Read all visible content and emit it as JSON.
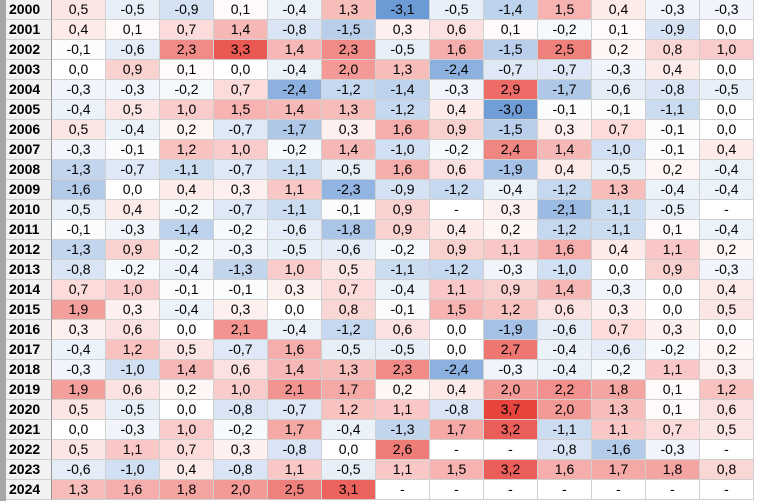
{
  "table": {
    "rows": [
      {
        "year": "2000",
        "cells": [
          "0,5",
          "-0,5",
          "-0,9",
          "0,1",
          "-0,4",
          "1,3",
          "-3,1",
          "-0,5",
          "-1,4",
          "1,5",
          "0,4",
          "-0,3",
          "-0,3"
        ]
      },
      {
        "year": "2001",
        "cells": [
          "0,4",
          "0,1",
          "0,7",
          "1,4",
          "-0,8",
          "-1,5",
          "0,3",
          "0,6",
          "0,1",
          "-0,2",
          "0,1",
          "-0,9",
          "0,0"
        ]
      },
      {
        "year": "2002",
        "cells": [
          "-0,1",
          "-0,6",
          "2,3",
          "3,3",
          "1,4",
          "2,3",
          "-0,5",
          "1,6",
          "-1,5",
          "2,5",
          "0,2",
          "0,8",
          "1,0"
        ]
      },
      {
        "year": "2003",
        "cells": [
          "0,0",
          "0,9",
          "0,1",
          "0,0",
          "-0,4",
          "2,0",
          "1,3",
          "-2,4",
          "-0,7",
          "-0,7",
          "-0,3",
          "0,4",
          "0,0"
        ]
      },
      {
        "year": "2004",
        "cells": [
          "-0,3",
          "-0,3",
          "-0,2",
          "0,7",
          "-2,4",
          "-1,2",
          "-1,4",
          "-0,3",
          "2,9",
          "-1,7",
          "-0,6",
          "-0,8",
          "-0,5"
        ]
      },
      {
        "year": "2005",
        "cells": [
          "-0,4",
          "0,5",
          "1,0",
          "1,5",
          "1,4",
          "1,3",
          "-1,2",
          "0,4",
          "-3,0",
          "-0,1",
          "-0,1",
          "-1,1",
          "0,0"
        ]
      },
      {
        "year": "2006",
        "cells": [
          "0,5",
          "-0,4",
          "0,2",
          "-0,7",
          "-1,7",
          "0,3",
          "1,6",
          "0,9",
          "-1,5",
          "0,3",
          "0,7",
          "-0,1",
          "0,0"
        ]
      },
      {
        "year": "2007",
        "cells": [
          "-0,3",
          "-0,1",
          "1,2",
          "1,0",
          "-0,2",
          "1,4",
          "-1,0",
          "-0,2",
          "2,4",
          "1,4",
          "-1,0",
          "-0,1",
          "0,4"
        ]
      },
      {
        "year": "2008",
        "cells": [
          "-1,3",
          "-0,7",
          "-1,1",
          "-0,7",
          "-1,1",
          "-0,5",
          "1,6",
          "0,6",
          "-1,9",
          "0,4",
          "-0,5",
          "0,2",
          "-0,4"
        ]
      },
      {
        "year": "2009",
        "cells": [
          "-1,6",
          "0,0",
          "0,4",
          "0,3",
          "1,1",
          "-2,3",
          "-0,9",
          "-1,2",
          "-0,4",
          "-1,2",
          "1,3",
          "-0,4",
          "-0,4"
        ]
      },
      {
        "year": "2010",
        "cells": [
          "-0,5",
          "0,4",
          "-0,2",
          "-0,7",
          "-1,1",
          "-0,1",
          "0,9",
          "-",
          "0,3",
          "-2,1",
          "-1,1",
          "-0,5",
          "-"
        ]
      },
      {
        "year": "2011",
        "cells": [
          "-0,1",
          "-0,3",
          "-1,4",
          "-0,2",
          "-0,6",
          "-1,8",
          "0,9",
          "0,4",
          "0,2",
          "-1,2",
          "-1,1",
          "0,1",
          "-0,4"
        ]
      },
      {
        "year": "2012",
        "cells": [
          "-1,3",
          "0,9",
          "-0,2",
          "-0,3",
          "-0,5",
          "-0,6",
          "-0,2",
          "0,9",
          "1,1",
          "1,6",
          "0,4",
          "1,1",
          "0,2"
        ]
      },
      {
        "year": "2013",
        "cells": [
          "-0,8",
          "-0,2",
          "-0,4",
          "-1,3",
          "1,0",
          "0,5",
          "-1,1",
          "-1,2",
          "-0,3",
          "-1,0",
          "0,0",
          "0,9",
          "-0,3"
        ]
      },
      {
        "year": "2014",
        "cells": [
          "0,7",
          "1,0",
          "-0,1",
          "-0,1",
          "0,3",
          "0,7",
          "-0,4",
          "1,1",
          "0,9",
          "1,4",
          "-0,3",
          "0,0",
          "0,4"
        ]
      },
      {
        "year": "2015",
        "cells": [
          "1,9",
          "0,3",
          "-0,4",
          "0,3",
          "0,0",
          "0,8",
          "-0,1",
          "1,5",
          "1,2",
          "0,6",
          "0,3",
          "0,0",
          "0,5"
        ]
      },
      {
        "year": "2016",
        "cells": [
          "0,3",
          "0,6",
          "0,0",
          "2,1",
          "-0,4",
          "-1,2",
          "0,6",
          "0,0",
          "-1,9",
          "-0,6",
          "0,7",
          "0,3",
          "0,0"
        ]
      },
      {
        "year": "2017",
        "cells": [
          "-0,4",
          "1,2",
          "0,5",
          "-0,7",
          "1,6",
          "-0,5",
          "-0,5",
          "0,0",
          "2,7",
          "-0,4",
          "-0,6",
          "-0,2",
          "0,2"
        ]
      },
      {
        "year": "2018",
        "cells": [
          "-0,3",
          "-1,0",
          "1,4",
          "0,6",
          "1,4",
          "1,3",
          "2,3",
          "-2,4",
          "-0,3",
          "-0,4",
          "-0,2",
          "1,1",
          "0,3"
        ]
      },
      {
        "year": "2019",
        "cells": [
          "1,9",
          "0,6",
          "0,2",
          "1,0",
          "2,1",
          "1,7",
          "0,2",
          "0,4",
          "2,0",
          "2,2",
          "1,8",
          "0,1",
          "1,2"
        ]
      },
      {
        "year": "2020",
        "cells": [
          "0,5",
          "-0,5",
          "0,0",
          "-0,8",
          "-0,7",
          "1,2",
          "1,1",
          "-0,8",
          "3,7",
          "2,0",
          "1,3",
          "0,1",
          "0,6"
        ]
      },
      {
        "year": "2021",
        "cells": [
          "0,0",
          "-0,3",
          "1,0",
          "-0,2",
          "1,7",
          "-0,4",
          "-1,3",
          "1,7",
          "3,2",
          "-1,1",
          "1,1",
          "0,7",
          "0,5"
        ]
      },
      {
        "year": "2022",
        "cells": [
          "0,5",
          "1,1",
          "0,7",
          "0,3",
          "-0,8",
          "0,0",
          "2,6",
          "-",
          "-",
          "-0,8",
          "-1,6",
          "-0,3",
          "-"
        ]
      },
      {
        "year": "2023",
        "cells": [
          "-0,6",
          "-1,0",
          "0,4",
          "-0,8",
          "1,1",
          "-0,5",
          "1,1",
          "1,5",
          "3,2",
          "1,6",
          "1,7",
          "1,8",
          "0,8"
        ]
      },
      {
        "year": "2024",
        "cells": [
          "1,3",
          "1,6",
          "1,8",
          "2,0",
          "2,5",
          "3,1",
          "-",
          "-",
          "-",
          "-",
          "-",
          "-",
          "-"
        ]
      }
    ]
  }
}
